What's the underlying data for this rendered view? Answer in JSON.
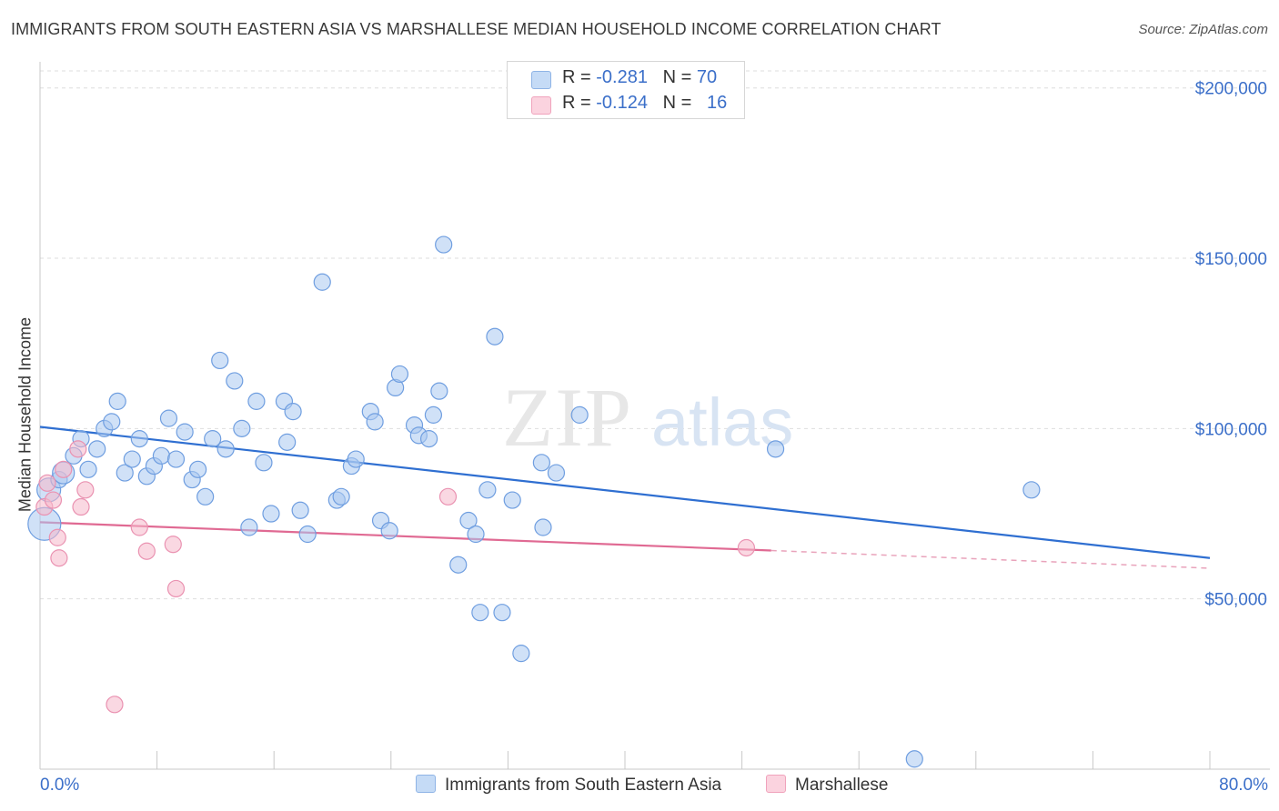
{
  "title": "IMMIGRANTS FROM SOUTH EASTERN ASIA VS MARSHALLESE MEDIAN HOUSEHOLD INCOME CORRELATION CHART",
  "source": "Source: ZipAtlas.com",
  "watermark": {
    "zip": "ZIP",
    "atlas": "atlas"
  },
  "legend": {
    "rows": [
      {
        "r_label": "R = ",
        "r_value": "-0.281",
        "n_label": "N = ",
        "n_value": "70",
        "color": "#a9c8f0"
      },
      {
        "r_label": "R = ",
        "r_value": "-0.124",
        "n_label": "N = ",
        "n_value": "16",
        "color": "#f6b8cb"
      }
    ]
  },
  "bottom_legend": [
    {
      "label": "Immigrants from South Eastern Asia",
      "color": "#a9c8f0"
    },
    {
      "label": "Marshallese",
      "color": "#f6b8cb"
    }
  ],
  "chart_data": {
    "type": "scatter",
    "title": "IMMIGRANTS FROM SOUTH EASTERN ASIA VS MARSHALLESE MEDIAN HOUSEHOLD INCOME CORRELATION CHART",
    "xlabel": "",
    "ylabel": "Median Household Income",
    "xlim": [
      0,
      80
    ],
    "ylim": [
      0,
      205000
    ],
    "x_tick_labels": [
      "0.0%",
      "80.0%"
    ],
    "y_ticks": [
      50000,
      100000,
      150000,
      200000
    ],
    "y_tick_labels": [
      "$50,000",
      "$100,000",
      "$150,000",
      "$200,000"
    ],
    "grid": true,
    "colors": {
      "blue": "#3b6fc9",
      "blue_fill": "#a9c8f0",
      "pink": "#e06a93",
      "pink_fill": "#f6b8cb",
      "grid": "#dedede",
      "tick_label": "#3b6fc9"
    },
    "series": [
      {
        "name": "Immigrants from South Eastern Asia",
        "color": "#3b6fc9",
        "points": [
          [
            0.3,
            72000
          ],
          [
            0.6,
            82000
          ],
          [
            1.3,
            85000
          ],
          [
            1.6,
            87000
          ],
          [
            2.3,
            92000
          ],
          [
            2.8,
            97000
          ],
          [
            3.3,
            88000
          ],
          [
            3.9,
            94000
          ],
          [
            4.4,
            100000
          ],
          [
            4.9,
            102000
          ],
          [
            5.3,
            108000
          ],
          [
            5.8,
            87000
          ],
          [
            6.3,
            91000
          ],
          [
            6.8,
            97000
          ],
          [
            7.3,
            86000
          ],
          [
            7.8,
            89000
          ],
          [
            8.3,
            92000
          ],
          [
            8.8,
            103000
          ],
          [
            9.3,
            91000
          ],
          [
            9.9,
            99000
          ],
          [
            10.4,
            85000
          ],
          [
            10.8,
            88000
          ],
          [
            11.3,
            80000
          ],
          [
            11.8,
            97000
          ],
          [
            12.3,
            120000
          ],
          [
            12.7,
            94000
          ],
          [
            13.3,
            114000
          ],
          [
            13.8,
            100000
          ],
          [
            14.3,
            71000
          ],
          [
            14.8,
            108000
          ],
          [
            15.3,
            90000
          ],
          [
            15.8,
            75000
          ],
          [
            16.7,
            108000
          ],
          [
            16.9,
            96000
          ],
          [
            17.3,
            105000
          ],
          [
            17.8,
            76000
          ],
          [
            18.3,
            69000
          ],
          [
            19.3,
            143000
          ],
          [
            20.3,
            79000
          ],
          [
            20.6,
            80000
          ],
          [
            21.3,
            89000
          ],
          [
            21.6,
            91000
          ],
          [
            22.6,
            105000
          ],
          [
            22.9,
            102000
          ],
          [
            23.3,
            73000
          ],
          [
            23.9,
            70000
          ],
          [
            24.3,
            112000
          ],
          [
            24.6,
            116000
          ],
          [
            25.6,
            101000
          ],
          [
            25.9,
            98000
          ],
          [
            26.6,
            97000
          ],
          [
            26.9,
            104000
          ],
          [
            27.3,
            111000
          ],
          [
            27.6,
            154000
          ],
          [
            28.6,
            60000
          ],
          [
            29.3,
            73000
          ],
          [
            29.8,
            69000
          ],
          [
            30.1,
            46000
          ],
          [
            30.6,
            82000
          ],
          [
            31.1,
            127000
          ],
          [
            31.6,
            46000
          ],
          [
            32.3,
            79000
          ],
          [
            32.9,
            34000
          ],
          [
            34.3,
            90000
          ],
          [
            34.4,
            71000
          ],
          [
            35.3,
            87000
          ],
          [
            36.9,
            104000
          ],
          [
            50.3,
            94000
          ],
          [
            67.8,
            82000
          ],
          [
            59.8,
            3000
          ]
        ],
        "trend": {
          "x": [
            0,
            80
          ],
          "y": [
            100500,
            62000
          ]
        }
      },
      {
        "name": "Marshallese",
        "color": "#e06a93",
        "points": [
          [
            0.3,
            77000
          ],
          [
            0.5,
            84000
          ],
          [
            0.9,
            79000
          ],
          [
            1.2,
            68000
          ],
          [
            1.3,
            62000
          ],
          [
            1.6,
            88000
          ],
          [
            2.6,
            94000
          ],
          [
            2.8,
            77000
          ],
          [
            3.1,
            82000
          ],
          [
            5.1,
            19000
          ],
          [
            6.8,
            71000
          ],
          [
            7.3,
            64000
          ],
          [
            9.1,
            66000
          ],
          [
            9.3,
            53000
          ],
          [
            27.9,
            80000
          ],
          [
            48.3,
            65000
          ]
        ],
        "trend": {
          "x": [
            0,
            50
          ],
          "y": [
            72500,
            64200
          ]
        },
        "trend_extension": {
          "x": [
            50,
            80
          ],
          "y": [
            64200,
            59000
          ]
        }
      }
    ]
  }
}
